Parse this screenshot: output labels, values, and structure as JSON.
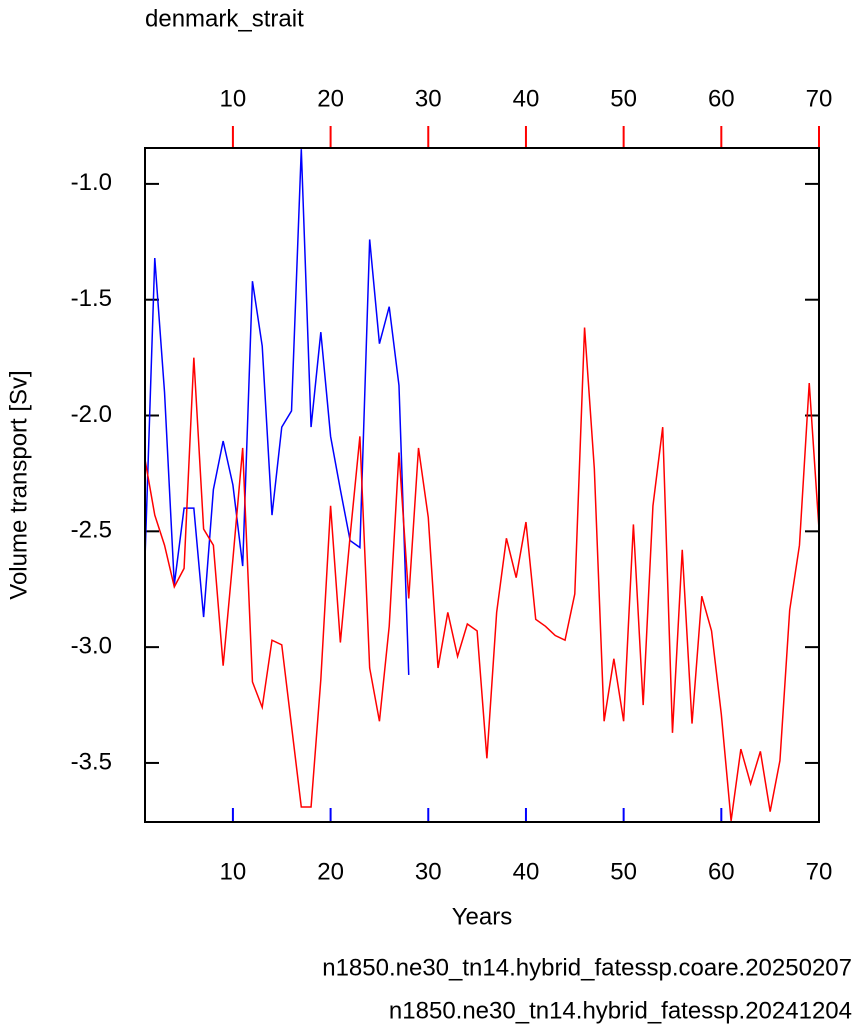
{
  "chart_data": {
    "type": "line",
    "title": "denmark_strait",
    "y_label": "Volume transport [Sv]",
    "x_label": "Years",
    "xlim": [
      1,
      70
    ],
    "xticks": [
      10,
      20,
      30,
      40,
      50,
      60,
      70
    ],
    "x2lim": [
      1,
      70
    ],
    "x2ticks": [
      10,
      20,
      30,
      40,
      50,
      60,
      70
    ],
    "ylim": [
      -3.755,
      -0.845
    ],
    "yticks": [
      {
        "value": -1.0,
        "label": "-1.0"
      },
      -1.5,
      {
        "value": -2.0,
        "label": "-2.0"
      },
      -2.5,
      {
        "value": -3.0,
        "label": "-3.0"
      },
      -3.5
    ],
    "series": [
      {
        "name": "n1850.ne30_tn14.hybrid_fatessp.coare.20250207",
        "color": "#0000ff",
        "axis": "x",
        "x": [
          1,
          2,
          3,
          4,
          5,
          6,
          7,
          8,
          9,
          10,
          11,
          12,
          13,
          14,
          15,
          16,
          17,
          18,
          19,
          20,
          21,
          22,
          23,
          24,
          25,
          26,
          27,
          28
        ],
        "values": [
          -2.62,
          -1.32,
          -1.9,
          -2.73,
          -2.4,
          -2.4,
          -2.87,
          -2.32,
          -2.11,
          -2.3,
          -2.65,
          -1.42,
          -1.7,
          -2.43,
          -2.05,
          -1.98,
          -0.85,
          -2.05,
          -1.64,
          -2.09,
          -2.32,
          -2.54,
          -2.57,
          -1.24,
          -1.69,
          -1.53,
          -1.87,
          -3.12
        ]
      },
      {
        "name": "n1850.ne30_tn14.hybrid_fatessp.20241204",
        "color": "#ff0000",
        "axis": "x2",
        "x": [
          1,
          2,
          3,
          4,
          5,
          6,
          7,
          8,
          9,
          10,
          11,
          12,
          13,
          14,
          15,
          16,
          17,
          18,
          19,
          20,
          21,
          22,
          23,
          24,
          25,
          26,
          27,
          28,
          29,
          30,
          31,
          32,
          33,
          34,
          35,
          36,
          37,
          38,
          39,
          40,
          41,
          42,
          43,
          44,
          45,
          46,
          47,
          48,
          49,
          50,
          51,
          52,
          53,
          54,
          55,
          56,
          57,
          58,
          59,
          60,
          61,
          62,
          63,
          64,
          65,
          66,
          67,
          68,
          69,
          70
        ],
        "values": [
          -2.19,
          -2.43,
          -2.56,
          -2.74,
          -2.66,
          -1.75,
          -2.49,
          -2.56,
          -3.08,
          -2.62,
          -2.14,
          -3.15,
          -3.26,
          -2.97,
          -2.99,
          -3.34,
          -3.69,
          -3.69,
          -3.14,
          -2.39,
          -2.98,
          -2.52,
          -2.09,
          -3.09,
          -3.32,
          -2.91,
          -2.16,
          -2.79,
          -2.14,
          -2.44,
          -3.09,
          -2.85,
          -3.04,
          -2.9,
          -2.93,
          -3.48,
          -2.85,
          -2.53,
          -2.7,
          -2.46,
          -2.88,
          -2.91,
          -2.95,
          -2.97,
          -2.77,
          -1.62,
          -2.23,
          -3.32,
          -3.05,
          -3.32,
          -2.47,
          -3.25,
          -2.39,
          -2.05,
          -3.37,
          -2.58,
          -3.33,
          -2.78,
          -2.93,
          -3.29,
          -3.75,
          -3.44,
          -3.59,
          -3.45,
          -3.71,
          -3.49,
          -2.84,
          -2.56,
          -1.86,
          -2.49
        ]
      }
    ]
  }
}
